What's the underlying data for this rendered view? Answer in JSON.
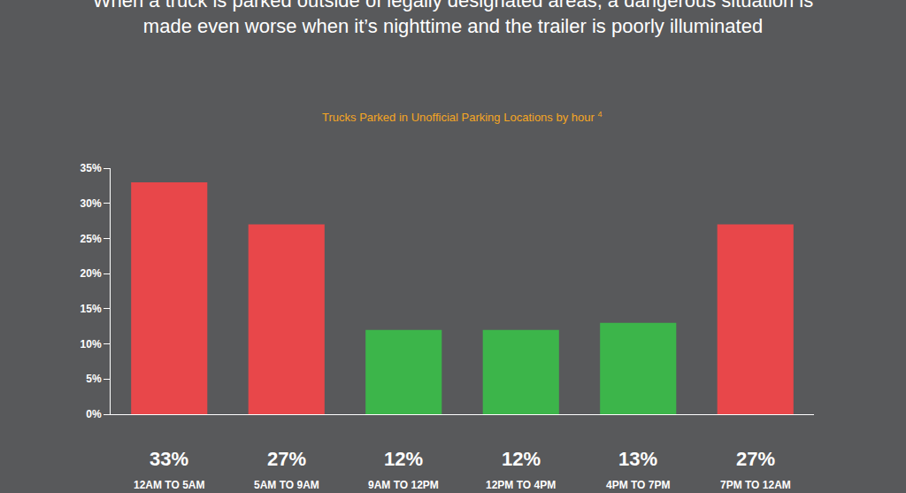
{
  "chart_data": {
    "type": "bar",
    "title": "When a truck is parked outside of legally designated areas, a dangerous situation is made even worse when it’s nighttime and the trailer is poorly illuminated",
    "subtitle": "Trucks Parked in Unofficial Parking Locations by hour",
    "subtitle_footnote": "4",
    "categories": [
      "12AM TO 5AM",
      "5AM TO 9AM",
      "9AM TO 12PM",
      "12PM TO 4PM",
      "4PM TO 7PM",
      "7PM TO 12AM"
    ],
    "values": [
      33,
      27,
      12,
      12,
      13,
      27
    ],
    "value_labels": [
      "33%",
      "27%",
      "12%",
      "12%",
      "13%",
      "27%"
    ],
    "colors": [
      "#e8474a",
      "#e8474a",
      "#3cb54a",
      "#3cb54a",
      "#3cb54a",
      "#e8474a"
    ],
    "ylim": [
      0,
      35
    ],
    "yticks": [
      {
        "value": 0,
        "label": "0%"
      },
      {
        "value": 5,
        "label": "5%"
      },
      {
        "value": 10,
        "label": "10%"
      },
      {
        "value": 15,
        "label": "15%"
      },
      {
        "value": 20,
        "label": "20%"
      },
      {
        "value": 25,
        "label": "25%"
      },
      {
        "value": 30,
        "label": "30%"
      },
      {
        "value": 35,
        "label": "35%"
      }
    ],
    "grid": false,
    "data_labels": true
  }
}
